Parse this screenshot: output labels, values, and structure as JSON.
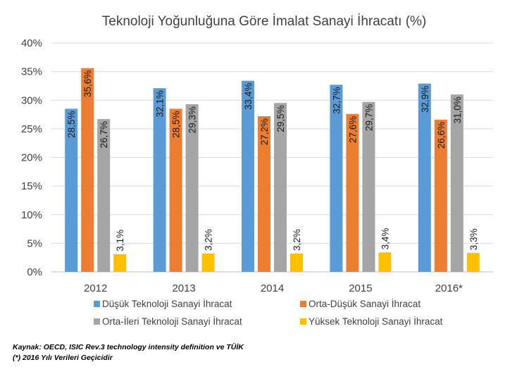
{
  "chart_data": {
    "type": "bar",
    "title": "Teknoloji Yoğunluğuna Göre İmalat Sanayi İhracatı (%)",
    "xlabel": "",
    "ylabel": "",
    "categories": [
      "2012",
      "2013",
      "2014",
      "2015",
      "2016*"
    ],
    "ylim": [
      0,
      40
    ],
    "yticks": [
      "0%",
      "5%",
      "10%",
      "15%",
      "20%",
      "25%",
      "30%",
      "35%",
      "40%"
    ],
    "grid": true,
    "legend_position": "bottom",
    "series": [
      {
        "name": "Düşük Teknoloji Sanayi İhracat",
        "color": "#5B9BD5",
        "values": [
          28.5,
          32.1,
          33.4,
          32.7,
          32.9
        ],
        "labels": [
          "28,5%",
          "32,1%",
          "33,4%",
          "32,7%",
          "32,9%"
        ]
      },
      {
        "name": "Orta-Düşük Sanayi İhracat",
        "color": "#ED7D31",
        "values": [
          35.6,
          28.5,
          27.2,
          27.6,
          26.6
        ],
        "labels": [
          "35,6%",
          "28,5%",
          "27,2%",
          "27,6%",
          "26,6%"
        ]
      },
      {
        "name": "Orta-İleri Teknoloji Sanayi İhracat",
        "color": "#A5A5A5",
        "values": [
          26.7,
          29.3,
          29.5,
          29.7,
          31.0
        ],
        "labels": [
          "26,7%",
          "29,3%",
          "29,5%",
          "29,7%",
          "31,0%"
        ]
      },
      {
        "name": "Yüksek Teknoloji Sanayi İhracat",
        "color": "#FFC000",
        "values": [
          3.1,
          3.2,
          3.2,
          3.4,
          3.3
        ],
        "labels": [
          "3,1%",
          "3,2%",
          "3,2%",
          "3,4%",
          "3,3%"
        ]
      }
    ]
  },
  "footer": {
    "source": "Kaynak: OECD, ISIC Rev.3 technology intensity definition ve TÜİK",
    "note": "(*)  2016 Yılı Verileri Geçicidir"
  }
}
